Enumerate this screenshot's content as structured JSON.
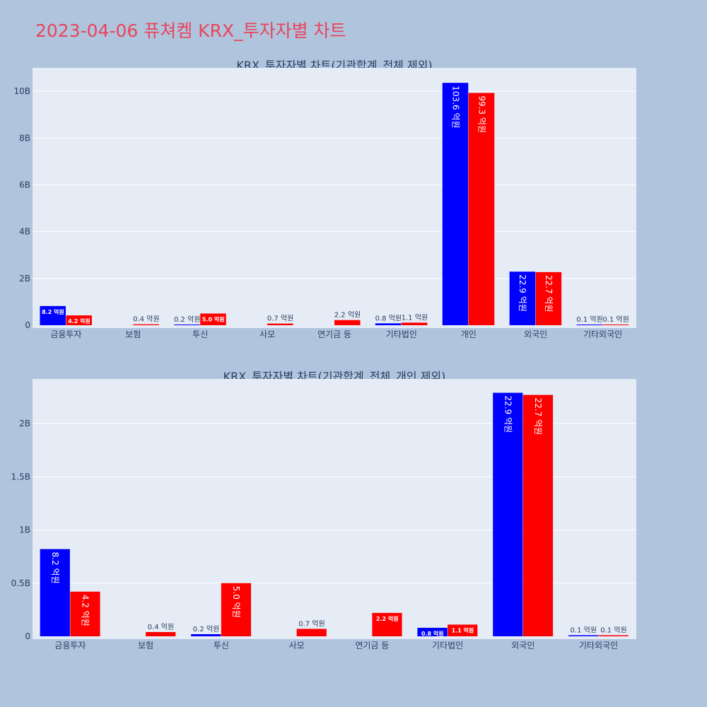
{
  "page": {
    "title": "2023-04-06 퓨쳐켐 KRX_투자자별 차트",
    "background": "#b0c4de",
    "title_color": "#e8455a"
  },
  "colors": {
    "series_a": "#0000ff",
    "series_b": "#ff0000",
    "plot_bg": "#e5ecf6",
    "grid": "#ffffff"
  },
  "chart_data": [
    {
      "type": "bar",
      "title": "KRX_투자자별 차트(기관합계_전체 제외)",
      "categories": [
        "금융투자",
        "보험",
        "투신",
        "사모",
        "연기금 등",
        "기타법인",
        "개인",
        "외국인",
        "기타외국인"
      ],
      "series": [
        {
          "color": "#0000ff",
          "values": [
            820000000,
            0,
            20000000,
            0,
            0,
            80000000,
            10360000000,
            2290000000,
            10000000
          ],
          "labels": [
            "8.2 억원",
            "",
            "0.2 억원",
            "",
            "",
            "0.8 억원",
            "103.6 억원",
            "22.9 억원",
            "0.1 억원"
          ]
        },
        {
          "color": "#ff0000",
          "values": [
            420000000,
            40000000,
            500000000,
            70000000,
            220000000,
            110000000,
            9930000000,
            2270000000,
            10000000
          ],
          "labels": [
            "4.2 억원",
            "0.4 억원",
            "5.0 억원",
            "0.7 억원",
            "2.2 억원",
            "1.1 억원",
            "99.3 억원",
            "22.7 억원",
            "0.1 억원"
          ]
        }
      ],
      "yticks": [
        0,
        2000000000,
        4000000000,
        6000000000,
        8000000000,
        10000000000
      ],
      "ytick_labels": [
        "0",
        "2B",
        "4B",
        "6B",
        "8B",
        "10B"
      ],
      "ylim": [
        0,
        11000000000
      ],
      "grid": true
    },
    {
      "type": "bar",
      "title": "KRX_투자자별 차트(기관합계_전체_개인 제외)",
      "categories": [
        "금융투자",
        "보험",
        "투신",
        "사모",
        "연기금 등",
        "기타법인",
        "외국인",
        "기타외국인"
      ],
      "series": [
        {
          "color": "#0000ff",
          "values": [
            820000000,
            0,
            20000000,
            0,
            0,
            80000000,
            2290000000,
            10000000
          ],
          "labels": [
            "8.2 억원",
            "",
            "0.2 억원",
            "",
            "",
            "0.8 억원",
            "22.9 억원",
            "0.1 억원"
          ]
        },
        {
          "color": "#ff0000",
          "values": [
            420000000,
            40000000,
            500000000,
            70000000,
            220000000,
            110000000,
            2270000000,
            10000000
          ],
          "labels": [
            "4.2 억원",
            "0.4 억원",
            "5.0 억원",
            "0.7 억원",
            "2.2 억원",
            "1.1 억원",
            "22.7 억원",
            "0.1 억원"
          ]
        }
      ],
      "yticks": [
        0,
        500000000,
        1000000000,
        1500000000,
        2000000000
      ],
      "ytick_labels": [
        "0",
        "0.5B",
        "1B",
        "1.5B",
        "2B"
      ],
      "ylim": [
        0,
        2420000000
      ],
      "grid": true
    }
  ]
}
